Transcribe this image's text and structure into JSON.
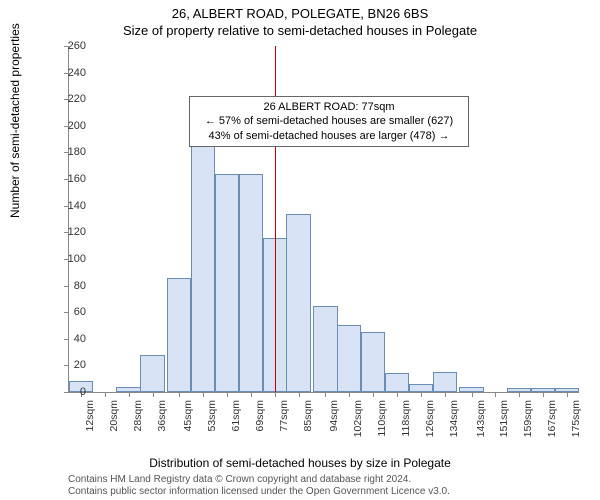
{
  "title_line1": "26, ALBERT ROAD, POLEGATE, BN26 6BS",
  "title_line2": "Size of property relative to semi-detached houses in Polegate",
  "ylabel": "Number of semi-detached properties",
  "xlabel": "Distribution of semi-detached houses by size in Polegate",
  "annotation": {
    "line1": "26 ALBERT ROAD: 77sqm",
    "line2": "← 57% of semi-detached houses are smaller (627)",
    "line3": "43% of semi-detached houses are larger (478) →"
  },
  "chart": {
    "type": "histogram",
    "bar_color": "#d7e2f4",
    "bar_border_color": "#6a8db5",
    "vline_color": "#cc0000",
    "vline_x": 77,
    "background_color": "#ffffff",
    "ylim": [
      0,
      260
    ],
    "ytick_step": 20,
    "x_categories": [
      "12sqm",
      "20sqm",
      "28sqm",
      "36sqm",
      "45sqm",
      "53sqm",
      "61sqm",
      "69sqm",
      "77sqm",
      "85sqm",
      "94sqm",
      "102sqm",
      "110sqm",
      "118sqm",
      "126sqm",
      "134sqm",
      "143sqm",
      "151sqm",
      "159sqm",
      "167sqm",
      "175sqm"
    ],
    "x_values": [
      12,
      20,
      28,
      36,
      45,
      53,
      61,
      69,
      77,
      85,
      94,
      102,
      110,
      118,
      126,
      134,
      143,
      151,
      159,
      167,
      175
    ],
    "bar_values": [
      8,
      0,
      4,
      28,
      86,
      200,
      164,
      164,
      116,
      134,
      65,
      50,
      45,
      14,
      6,
      15,
      4,
      0,
      3,
      3,
      3
    ],
    "x_range": [
      8,
      179
    ],
    "bar_width_data": 8.15
  },
  "footer": {
    "line1": "Contains HM Land Registry data © Crown copyright and database right 2024.",
    "line2": "Contains public sector information licensed under the Open Government Licence v3.0."
  },
  "title_fontsize": 13,
  "label_fontsize": 12,
  "tick_fontsize": 11
}
